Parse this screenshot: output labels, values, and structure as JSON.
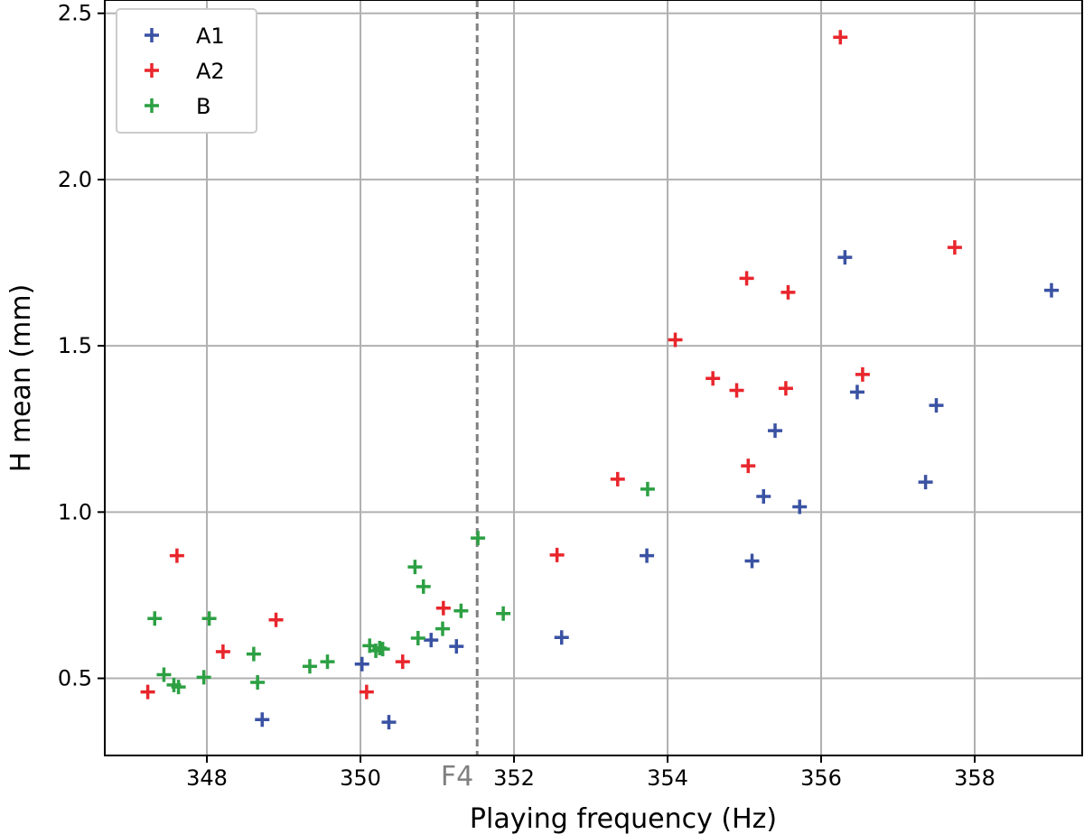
{
  "chart_data": {
    "type": "scatter",
    "xlabel": "Playing frequency (Hz)",
    "ylabel": "H mean (mm)",
    "xlim": [
      346.67,
      359.4
    ],
    "ylim": [
      0.268,
      2.54
    ],
    "xticks": [
      348,
      350,
      352,
      354,
      356,
      358
    ],
    "yticks": [
      0.5,
      1.0,
      1.5,
      2.0,
      2.5
    ],
    "xtick_labels": [
      "348",
      "350",
      "352",
      "354",
      "356",
      "358"
    ],
    "ytick_labels": [
      "0.5",
      "1.0",
      "1.5",
      "2.0",
      "2.5"
    ],
    "grid": true,
    "legend_position": "top-left",
    "reference_line": {
      "x": 351.52,
      "label": "F4",
      "style": "dashed",
      "color": "#808080"
    },
    "series": [
      {
        "name": "A1",
        "color": "#3a52a3",
        "marker": "plus",
        "points": [
          [
            348.72,
            0.376
          ],
          [
            350.02,
            0.543
          ],
          [
            350.37,
            0.368
          ],
          [
            350.92,
            0.615
          ],
          [
            351.25,
            0.596
          ],
          [
            352.62,
            0.623
          ],
          [
            353.73,
            0.869
          ],
          [
            355.1,
            0.853
          ],
          [
            355.25,
            1.047
          ],
          [
            355.4,
            1.245
          ],
          [
            355.72,
            1.016
          ],
          [
            356.31,
            1.766
          ],
          [
            356.47,
            1.361
          ],
          [
            357.36,
            1.09
          ],
          [
            357.5,
            1.321
          ],
          [
            359.0,
            1.667
          ]
        ]
      },
      {
        "name": "A2",
        "color": "#e8262c",
        "marker": "plus",
        "points": [
          [
            347.23,
            0.459
          ],
          [
            347.61,
            0.869
          ],
          [
            348.21,
            0.58
          ],
          [
            348.9,
            0.676
          ],
          [
            350.08,
            0.459
          ],
          [
            350.55,
            0.55
          ],
          [
            351.08,
            0.711
          ],
          [
            352.56,
            0.871
          ],
          [
            353.35,
            1.099
          ],
          [
            354.1,
            1.518
          ],
          [
            354.59,
            1.402
          ],
          [
            354.9,
            1.366
          ],
          [
            355.03,
            1.703
          ],
          [
            355.05,
            1.139
          ],
          [
            355.54,
            1.372
          ],
          [
            355.57,
            1.661
          ],
          [
            356.25,
            2.428
          ],
          [
            356.54,
            1.414
          ],
          [
            357.74,
            1.796
          ]
        ]
      },
      {
        "name": "B",
        "color": "#2ca043",
        "marker": "plus",
        "points": [
          [
            347.32,
            0.68
          ],
          [
            347.44,
            0.511
          ],
          [
            347.57,
            0.48
          ],
          [
            347.63,
            0.474
          ],
          [
            347.96,
            0.503
          ],
          [
            348.03,
            0.68
          ],
          [
            348.61,
            0.573
          ],
          [
            348.66,
            0.488
          ],
          [
            349.34,
            0.536
          ],
          [
            349.57,
            0.55
          ],
          [
            350.12,
            0.598
          ],
          [
            350.2,
            0.583
          ],
          [
            350.25,
            0.591
          ],
          [
            350.29,
            0.588
          ],
          [
            350.71,
            0.835
          ],
          [
            350.75,
            0.621
          ],
          [
            350.82,
            0.776
          ],
          [
            351.07,
            0.649
          ],
          [
            351.31,
            0.703
          ],
          [
            351.53,
            0.922
          ],
          [
            351.86,
            0.695
          ],
          [
            353.74,
            1.069
          ]
        ]
      }
    ]
  }
}
